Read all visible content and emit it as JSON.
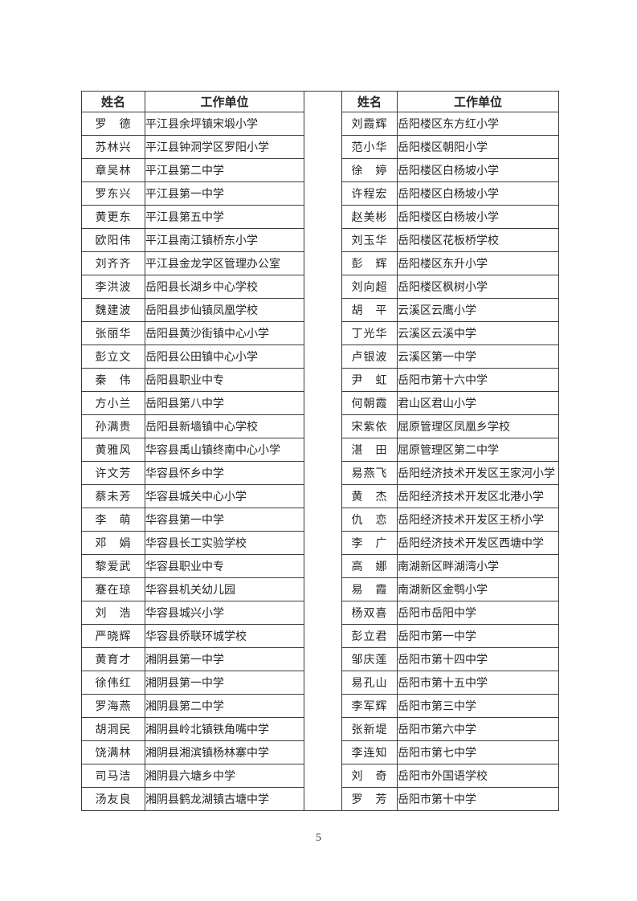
{
  "page": {
    "number": "5"
  },
  "table": {
    "headers": {
      "name": "姓名",
      "unit": "工作单位"
    },
    "left_rows": [
      {
        "name": "罗　德",
        "unit": "平江县余坪镇宋塅小学"
      },
      {
        "name": "苏林兴",
        "unit": "平江县钟洞学区罗阳小学"
      },
      {
        "name": "章吴林",
        "unit": "平江县第二中学"
      },
      {
        "name": "罗东兴",
        "unit": "平江县第一中学"
      },
      {
        "name": "黄更东",
        "unit": "平江县第五中学"
      },
      {
        "name": "欧阳伟",
        "unit": "平江县南江镇桥东小学"
      },
      {
        "name": "刘齐齐",
        "unit": "平江县金龙学区管理办公室"
      },
      {
        "name": "李洪波",
        "unit": "岳阳县长湖乡中心学校"
      },
      {
        "name": "魏建波",
        "unit": "岳阳县步仙镇凤凰学校"
      },
      {
        "name": "张丽华",
        "unit": "岳阳县黄沙街镇中心小学"
      },
      {
        "name": "彭立文",
        "unit": "岳阳县公田镇中心小学"
      },
      {
        "name": "秦　伟",
        "unit": "岳阳县职业中专"
      },
      {
        "name": "方小兰",
        "unit": "岳阳县第八中学"
      },
      {
        "name": "孙满贵",
        "unit": "岳阳县新墙镇中心学校"
      },
      {
        "name": "黄雅风",
        "unit": "华容县禹山镇终南中心小学"
      },
      {
        "name": "许文芳",
        "unit": "华容县怀乡中学"
      },
      {
        "name": "蔡未芳",
        "unit": "华容县城关中心小学"
      },
      {
        "name": "李　萌",
        "unit": "华容县第一中学"
      },
      {
        "name": "邓　娟",
        "unit": "华容县长工实验学校"
      },
      {
        "name": "黎爱武",
        "unit": "华容县职业中专"
      },
      {
        "name": "蹇在琼",
        "unit": "华容县机关幼儿园"
      },
      {
        "name": "刘　浩",
        "unit": "华容县城兴小学"
      },
      {
        "name": "严晓辉",
        "unit": "华容县侨联环城学校"
      },
      {
        "name": "黄育才",
        "unit": "湘阴县第一中学"
      },
      {
        "name": "徐伟红",
        "unit": "湘阴县第一中学"
      },
      {
        "name": "罗海燕",
        "unit": "湘阴县第二中学"
      },
      {
        "name": "胡洞民",
        "unit": "湘阴县岭北镇铁角嘴中学"
      },
      {
        "name": "饶满林",
        "unit": "湘阴县湘滨镇杨林寨中学"
      },
      {
        "name": "司马洁",
        "unit": "湘阴县六塘乡中学"
      },
      {
        "name": "汤友良",
        "unit": "湘阴县鹤龙湖镇古塘中学"
      }
    ],
    "right_rows": [
      {
        "name": "刘霞辉",
        "unit": "岳阳楼区东方红小学"
      },
      {
        "name": "范小华",
        "unit": "岳阳楼区朝阳小学"
      },
      {
        "name": "徐　婷",
        "unit": "岳阳楼区白杨坡小学"
      },
      {
        "name": "许程宏",
        "unit": "岳阳楼区白杨坡小学"
      },
      {
        "name": "赵美彬",
        "unit": "岳阳楼区白杨坡小学"
      },
      {
        "name": "刘玉华",
        "unit": "岳阳楼区花板桥学校"
      },
      {
        "name": "彭　辉",
        "unit": "岳阳楼区东升小学"
      },
      {
        "name": "刘向超",
        "unit": "岳阳楼区枫树小学"
      },
      {
        "name": "胡　平",
        "unit": "云溪区云鹰小学"
      },
      {
        "name": "丁光华",
        "unit": "云溪区云溪中学"
      },
      {
        "name": "卢银波",
        "unit": "云溪区第一中学"
      },
      {
        "name": "尹　虹",
        "unit": "岳阳市第十六中学"
      },
      {
        "name": "何朝霞",
        "unit": "君山区君山小学"
      },
      {
        "name": "宋紫依",
        "unit": "屈原管理区凤凰乡学校"
      },
      {
        "name": "湛　田",
        "unit": "屈原管理区第二中学"
      },
      {
        "name": "易燕飞",
        "unit": "岳阳经济技术开发区王家河小学"
      },
      {
        "name": "黄　杰",
        "unit": "岳阳经济技术开发区北港小学"
      },
      {
        "name": "仇　恋",
        "unit": "岳阳经济技术开发区王桥小学"
      },
      {
        "name": "李　广",
        "unit": "岳阳经济技术开发区西塘中学"
      },
      {
        "name": "高　娜",
        "unit": "南湖新区畔湖湾小学"
      },
      {
        "name": "易　霞",
        "unit": "南湖新区金鹗小学"
      },
      {
        "name": "杨双喜",
        "unit": "岳阳市岳阳中学"
      },
      {
        "name": "彭立君",
        "unit": "岳阳市第一中学"
      },
      {
        "name": "邹庆莲",
        "unit": "岳阳市第十四中学"
      },
      {
        "name": "易孔山",
        "unit": "岳阳市第十五中学"
      },
      {
        "name": "李军辉",
        "unit": "岳阳市第三中学"
      },
      {
        "name": "张新堤",
        "unit": "岳阳市第六中学"
      },
      {
        "name": "李连知",
        "unit": "岳阳市第七中学"
      },
      {
        "name": "刘　奇",
        "unit": "岳阳市外国语学校"
      },
      {
        "name": "罗　芳",
        "unit": "岳阳市第十中学"
      }
    ]
  },
  "colors": {
    "border": "#3d3d3d",
    "text": "#262626",
    "background": "#ffffff"
  }
}
